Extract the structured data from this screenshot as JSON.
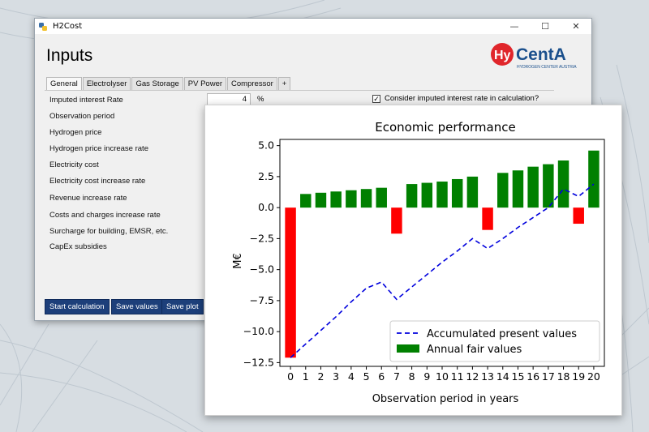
{
  "window": {
    "title": "H2Cost",
    "minimize": "—",
    "maximize": "☐",
    "close": "✕"
  },
  "page": {
    "heading": "Inputs"
  },
  "logo": {
    "brand": "HyCentA",
    "subtitle": "HYDROGEN CENTER AUSTRIA",
    "color": "#e0262b",
    "accent": "#1a4f8c"
  },
  "tabs": [
    "General",
    "Electrolyser",
    "Gas Storage",
    "PV Power",
    "Compressor",
    "+"
  ],
  "form": {
    "rows": [
      "Imputed interest Rate",
      "Observation period",
      "Hydrogen price",
      "Hydrogen price increase rate",
      "Electricity cost",
      "Electricity cost increase rate",
      "Revenue increase rate",
      "Costs and charges increase rate",
      "Surcharge for building, EMSR, etc.",
      "CapEx subsidies"
    ],
    "interest_value": "4",
    "interest_unit": "%",
    "checkbox_label": "Consider imputed interest rate in calculation?",
    "checkbox_checked": "✓"
  },
  "buttons": {
    "start": "Start calculation",
    "save_values": "Save values",
    "save_plot": "Save plot"
  },
  "chart_data": {
    "type": "bar",
    "title": "Economic performance",
    "xlabel": "Observation period in years",
    "ylabel": "M€",
    "x": [
      0,
      1,
      2,
      3,
      4,
      5,
      6,
      7,
      8,
      9,
      10,
      11,
      12,
      13,
      14,
      15,
      16,
      17,
      18,
      19,
      20
    ],
    "ylim": [
      -12.8,
      5.5
    ],
    "yticks": [
      "5.0",
      "2.5",
      "0.0",
      "−2.5",
      "−5.0",
      "−7.5",
      "−10.0",
      "−12.5"
    ],
    "ytick_values": [
      5.0,
      2.5,
      0.0,
      -2.5,
      -5.0,
      -7.5,
      -10.0,
      -12.5
    ],
    "xticks": [
      "0",
      "1",
      "2",
      "3",
      "4",
      "5",
      "6",
      "7",
      "8",
      "9",
      "10",
      "11",
      "12",
      "13",
      "14",
      "15",
      "16",
      "17",
      "18",
      "19",
      "20"
    ],
    "series": [
      {
        "name": "Annual fair values",
        "kind": "bar",
        "positive_color": "#008000",
        "negative_color": "#ff0000",
        "values": [
          -12.1,
          1.1,
          1.2,
          1.3,
          1.4,
          1.5,
          1.6,
          -2.1,
          1.9,
          2.0,
          2.1,
          2.3,
          2.5,
          -1.8,
          2.8,
          3.0,
          3.3,
          3.5,
          3.8,
          -1.3,
          4.6
        ]
      },
      {
        "name": "Accumulated present values",
        "kind": "line",
        "style": "dashed",
        "color": "#0000dd",
        "values": [
          -12.1,
          -11.0,
          -9.9,
          -8.8,
          -7.6,
          -6.5,
          -6.0,
          -7.4,
          -6.4,
          -5.4,
          -4.4,
          -3.5,
          -2.5,
          -3.3,
          -2.5,
          -1.6,
          -0.8,
          0.0,
          1.5,
          0.9,
          1.9
        ]
      }
    ],
    "legend": [
      "Accumulated present values",
      "Annual fair values"
    ],
    "legend_position": "lower-right"
  }
}
